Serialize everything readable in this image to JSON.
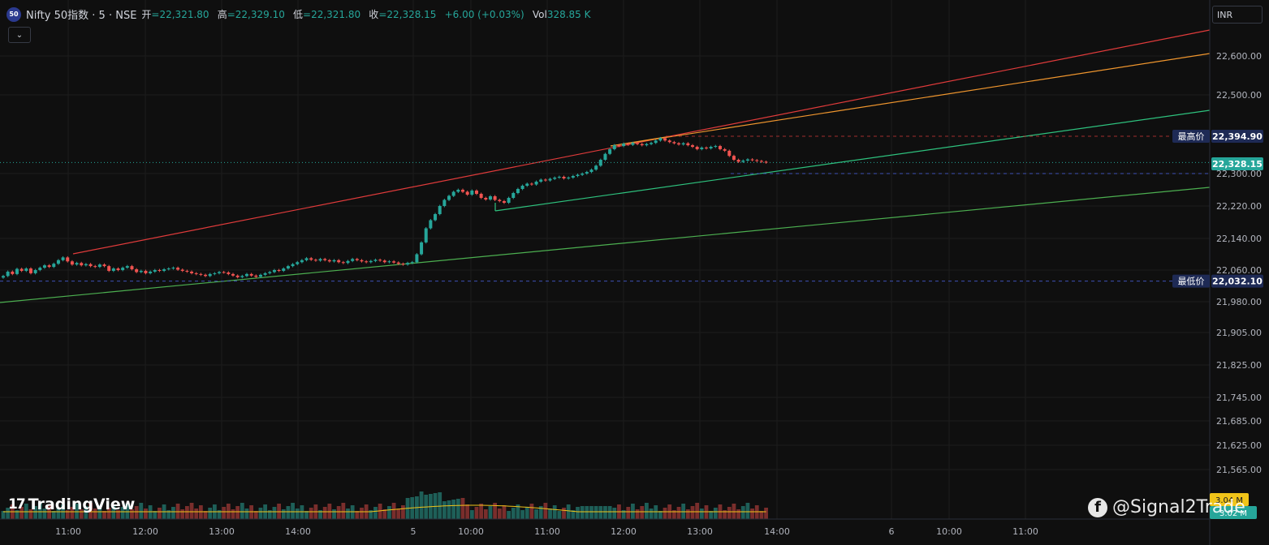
{
  "header": {
    "symbol_badge": "50",
    "title": "Nifty 50指数 · 5 · NSE",
    "open_label": "开",
    "open_value": "=22,321.80",
    "high_label": "高",
    "high_value": "=22,329.10",
    "low_label": "低",
    "low_value": "=22,321.80",
    "close_label": "收",
    "close_value": "=22,328.15",
    "change_value": "+6.00 (+0.03%)",
    "vol_label": "Vol",
    "vol_value": "328.85 K"
  },
  "toolbar": {
    "collapse_icon": "chevron-down-icon",
    "currency": "INR"
  },
  "branding": {
    "logo_mark": "17",
    "logo_text": "TradingView"
  },
  "watermark": {
    "icon": "facebook-icon",
    "text": "@Signal2Trade"
  },
  "colors": {
    "up": "#26a69a",
    "down": "#ef5350",
    "background": "#0f0f0f",
    "price_badge": "#26a69a",
    "high_low_badge": "#1e2a55"
  },
  "chart_data": {
    "type": "candlestick",
    "symbol": "Nifty 50指数",
    "interval": "5",
    "y_ticks": [
      "22,600.00",
      "22,500.00",
      "22,300.00",
      "22,220.00",
      "22,140.00",
      "22,060.00",
      "21,980.00",
      "21,905.00",
      "21,825.00",
      "21,745.00",
      "21,685.00",
      "21,625.00",
      "21,565.00"
    ],
    "y_tick_values": [
      22600,
      22500,
      22300,
      22220,
      22140,
      22060,
      21980,
      21905,
      21825,
      21745,
      21685,
      21625,
      21565
    ],
    "x_ticks": [
      "11:00",
      "12:00",
      "13:00",
      "14:00",
      "5",
      "10:00",
      "11:00",
      "12:00",
      "13:00",
      "14:00",
      "6",
      "10:00",
      "11:00"
    ],
    "price_labels": {
      "high_label": "最高价",
      "high_value": "22,394.90",
      "current_value": "22,328.15",
      "low_label": "最低价",
      "low_value": "22,032.10"
    },
    "volume_labels": {
      "vol": "3.04 M",
      "vol_ma": "3.02 M"
    },
    "closes": [
      22045,
      22056,
      22050,
      22063,
      22058,
      22064,
      22052,
      22060,
      22066,
      22072,
      22068,
      22076,
      22085,
      22092,
      22082,
      22074,
      22078,
      22072,
      22075,
      22070,
      22068,
      22074,
      22070,
      22058,
      22064,
      22060,
      22066,
      22070,
      22062,
      22055,
      22058,
      22052,
      22056,
      22060,
      22058,
      22062,
      22064,
      22066,
      22061,
      22058,
      22056,
      22052,
      22050,
      22048,
      22045,
      22050,
      22052,
      22055,
      22054,
      22050,
      22046,
      22042,
      22045,
      22050,
      22046,
      22043,
      22048,
      22052,
      22055,
      22060,
      22058,
      22064,
      22070,
      22075,
      22080,
      22085,
      22090,
      22086,
      22084,
      22088,
      22085,
      22082,
      22085,
      22080,
      22078,
      22083,
      22088,
      22085,
      22082,
      22080,
      22083,
      22086,
      22084,
      22080,
      22082,
      22079,
      22076,
      22074,
      22078,
      22080,
      22100,
      22130,
      22165,
      22185,
      22200,
      22220,
      22235,
      22245,
      22255,
      22260,
      22255,
      22248,
      22258,
      22250,
      22240,
      22236,
      22244,
      22235,
      22232,
      22228,
      22240,
      22252,
      22262,
      22270,
      22275,
      22273,
      22280,
      22285,
      22283,
      22287,
      22290,
      22292,
      22288,
      22290,
      22294,
      22297,
      22300,
      22304,
      22310,
      22320,
      22335,
      22350,
      22362,
      22372,
      22370,
      22376,
      22373,
      22378,
      22375,
      22372,
      22375,
      22378,
      22384,
      22390,
      22384,
      22380,
      22377,
      22374,
      22377,
      22372,
      22368,
      22362,
      22366,
      22364,
      22368,
      22370,
      22362,
      22358,
      22345,
      22335,
      22330,
      22333,
      22336,
      22334,
      22332,
      22330,
      22328
    ]
  }
}
